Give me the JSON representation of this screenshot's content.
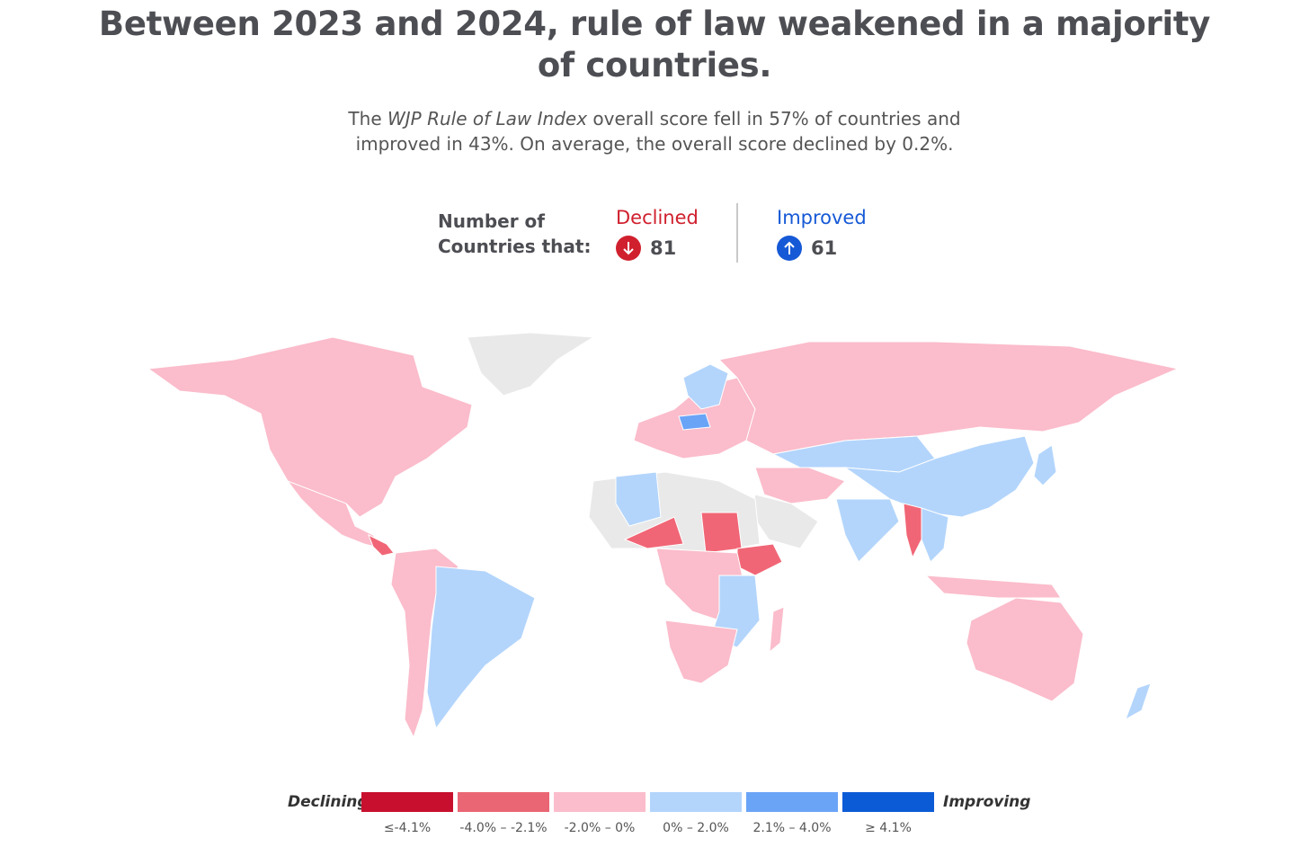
{
  "title": {
    "line1": "Between 2023 and 2024, rule of law weakened in a majority",
    "line2": "of countries."
  },
  "subtitle": {
    "line1_prefix": "The ",
    "line1_italic": "WJP Rule of Law Index",
    "line1_suffix": " overall score fell in 57% of countries and",
    "line2": "improved in 43%. On average, the overall score declined by 0.2%."
  },
  "stats": {
    "label_line1": "Number of",
    "label_line2": "Countries that:",
    "declined": {
      "label": "Declined",
      "value": "81",
      "color": "#d0202e",
      "icon": "arrow-down-icon"
    },
    "improved": {
      "label": "Improved",
      "value": "61",
      "color": "#1659d6",
      "icon": "arrow-up-icon"
    }
  },
  "legend": {
    "left_label": "Declining",
    "right_label": "Improving",
    "bins": [
      {
        "label": "≤-4.1%",
        "color": "#c8102e"
      },
      {
        "label": "-4.0% –  -2.1%",
        "color": "#ea6674"
      },
      {
        "label": "-2.0% –  0%",
        "color": "#fbbccb"
      },
      {
        "label": "0% – 2.0%",
        "color": "#b3d5fc"
      },
      {
        "label": "2.1% – 4.0%",
        "color": "#6aa4f7"
      },
      {
        "label": "≥ 4.1%",
        "color": "#0c5bd6"
      }
    ]
  },
  "map_colors": {
    "decline_light": "#fbbccb",
    "decline_mid": "#f16676",
    "improve_light": "#b3d5fc",
    "improve_mid": "#6aa4f7",
    "no_data": "#e9e9e9"
  }
}
